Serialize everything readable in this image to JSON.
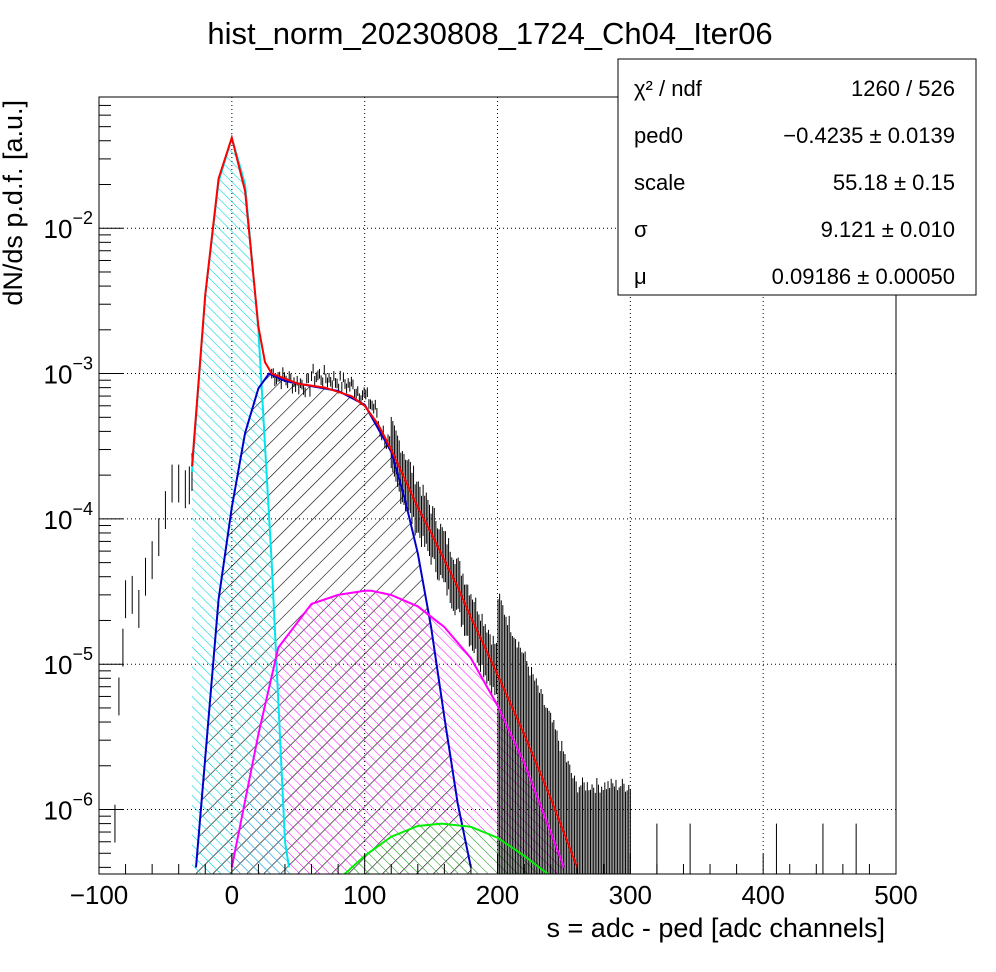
{
  "chart_data": {
    "type": "line",
    "title": "hist_norm_20230808_1724_Ch04_Iter06",
    "xlabel": "s = adc - ped [adc channels]",
    "ylabel": "dN/ds p.d.f. [a.u.]",
    "xlim": [
      -100,
      500
    ],
    "ylim": [
      3.6e-07,
      0.08
    ],
    "yscale": "log",
    "grid": true,
    "x_ticks": [
      "−100",
      "0",
      "100",
      "200",
      "300",
      "400",
      "500"
    ],
    "x_tick_values": [
      -100,
      0,
      100,
      200,
      300,
      400,
      500
    ],
    "y_ticks": [
      {
        "base": "10",
        "exp": "−2",
        "value": 0.01
      },
      {
        "base": "10",
        "exp": "−3",
        "value": 0.001
      },
      {
        "base": "10",
        "exp": "−4",
        "value": 0.0001
      },
      {
        "base": "10",
        "exp": "−5",
        "value": 1e-05
      },
      {
        "base": "10",
        "exp": "−6",
        "value": 1e-06
      }
    ],
    "stats_box": {
      "position": "top-right",
      "rows": [
        {
          "label": "χ² / ndf",
          "value": "1260 / 526"
        },
        {
          "label": "ped0",
          "value": "−0.4235 ± 0.0139"
        },
        {
          "label": "scale",
          "value": "55.18 ± 0.15"
        },
        {
          "label": "σ",
          "value": "9.121 ± 0.010"
        },
        {
          "label": "μ",
          "value": "0.09186 ± 0.00050"
        }
      ]
    },
    "series": [
      {
        "color": "#ff0000",
        "kind": "total-fit",
        "x": [
          -30,
          -20,
          -10,
          0,
          10,
          20,
          25,
          30,
          50,
          70,
          90,
          100,
          110,
          120,
          130,
          140,
          150,
          160,
          170,
          180,
          200,
          220,
          240,
          260
        ],
        "y": [
          0.00023,
          0.0035,
          0.022,
          0.042,
          0.018,
          0.0021,
          0.0012,
          0.001,
          0.00085,
          0.0008,
          0.0007,
          0.0006,
          0.00045,
          0.0003,
          0.00019,
          0.00012,
          8e-05,
          5.2e-05,
          3.4e-05,
          2.1e-05,
          8.5e-06,
          3.3e-06,
          1.2e-06,
          4e-07
        ]
      },
      {
        "color": "#00e5ee",
        "kind": "pedestal",
        "x": [
          -30,
          -20,
          -10,
          0,
          10,
          20,
          30,
          40,
          43
        ],
        "y": [
          0.00021,
          0.0035,
          0.021,
          0.042,
          0.02,
          0.002,
          5e-05,
          6e-07,
          4e-07
        ]
      },
      {
        "color": "#0000cc",
        "kind": "1 p.e.",
        "x": [
          -27,
          -10,
          0,
          10,
          20,
          28,
          40,
          60,
          80,
          100,
          120,
          130,
          140,
          150,
          160,
          170,
          180
        ],
        "y": [
          4e-07,
          2.8e-05,
          0.00012,
          0.00039,
          0.00079,
          0.001,
          0.00089,
          0.00082,
          0.00076,
          0.00061,
          0.00029,
          0.00014,
          5.8e-05,
          1.8e-05,
          4.3e-06,
          1.1e-06,
          4e-07
        ]
      },
      {
        "color": "#ff00ff",
        "kind": "2 p.e.",
        "x": [
          0,
          20,
          35,
          60,
          80,
          100,
          105,
          120,
          140,
          160,
          180,
          200,
          220,
          240,
          250
        ],
        "y": [
          4e-07,
          3.3e-06,
          1.3e-05,
          2.6e-05,
          3e-05,
          3.2e-05,
          3.2e-05,
          3e-05,
          2.5e-05,
          1.8e-05,
          1.1e-05,
          5.2e-06,
          2.1e-06,
          7e-07,
          4e-07
        ]
      },
      {
        "color": "#00ee00",
        "kind": "3 p.e.",
        "x": [
          85,
          100,
          120,
          140,
          158,
          180,
          200,
          220,
          238
        ],
        "y": [
          3.6e-07,
          4.8e-07,
          6.5e-07,
          7.7e-07,
          8e-07,
          7.6e-07,
          6.4e-07,
          4.8e-07,
          3.6e-07
        ]
      }
    ],
    "histogram": {
      "color": "#000000",
      "x": [
        -88,
        -85,
        -82,
        -80,
        -75,
        -70,
        -65,
        -60,
        -55,
        -50,
        -45,
        -40,
        -35,
        -32,
        -30
      ],
      "y": [
        8e-07,
        6e-06,
        1.3e-05,
        2.8e-05,
        3e-05,
        2.4e-05,
        4e-05,
        5.2e-05,
        7.5e-05,
        0.000115,
        0.000175,
        0.000175,
        0.00016,
        0.00017,
        0.00021
      ]
    }
  }
}
